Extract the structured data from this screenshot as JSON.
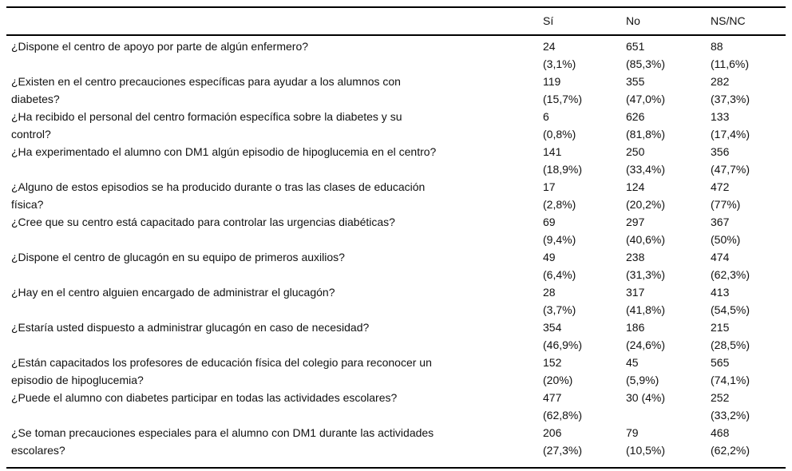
{
  "table": {
    "columns": [
      "Sí",
      "No",
      "NS/NC"
    ],
    "rows": [
      {
        "question_lines": [
          "¿Dispone el centro de apoyo por parte de algún enfermero?"
        ],
        "si": [
          "24",
          "(3,1%)"
        ],
        "no": [
          "651",
          "(85,3%)"
        ],
        "nsnc": [
          "88",
          "(11,6%)"
        ]
      },
      {
        "question_lines": [
          "¿Existen en el centro precauciones específicas para ayudar a los alumnos con",
          "diabetes?"
        ],
        "si": [
          "119",
          "(15,7%)"
        ],
        "no": [
          "355",
          "(47,0%)"
        ],
        "nsnc": [
          "282",
          "(37,3%)"
        ]
      },
      {
        "question_lines": [
          "¿Ha recibido el personal del centro formación específica sobre la diabetes y su",
          "control?"
        ],
        "si": [
          "6",
          "(0,8%)"
        ],
        "no": [
          "626",
          "(81,8%)"
        ],
        "nsnc": [
          "133",
          "(17,4%)"
        ]
      },
      {
        "question_lines": [
          "¿Ha experimentado el alumno con DM1 algún episodio de hipoglucemia en el centro?"
        ],
        "si": [
          "141",
          "(18,9%)"
        ],
        "no": [
          "250",
          "(33,4%)"
        ],
        "nsnc": [
          "356",
          "(47,7%)"
        ]
      },
      {
        "question_lines": [
          "¿Alguno de estos episodios se ha producido durante o tras las clases de educación",
          "física?"
        ],
        "si": [
          "17",
          "(2,8%)"
        ],
        "no": [
          "124",
          "(20,2%)"
        ],
        "nsnc": [
          "472",
          "(77%)"
        ]
      },
      {
        "question_lines": [
          "¿Cree que su centro está capacitado para controlar las urgencias diabéticas?"
        ],
        "si": [
          "69",
          "(9,4%)"
        ],
        "no": [
          "297",
          "(40,6%)"
        ],
        "nsnc": [
          "367",
          "(50%)"
        ]
      },
      {
        "question_lines": [
          "¿Dispone el centro de glucagón en su equipo de primeros auxilios?"
        ],
        "si": [
          "49",
          "(6,4%)"
        ],
        "no": [
          "238",
          "(31,3%)"
        ],
        "nsnc": [
          "474",
          "(62,3%)"
        ]
      },
      {
        "question_lines": [
          "¿Hay en el centro alguien encargado de administrar el glucagón?"
        ],
        "si": [
          "28",
          "(3,7%)"
        ],
        "no": [
          "317",
          "(41,8%)"
        ],
        "nsnc": [
          "413",
          "(54,5%)"
        ]
      },
      {
        "question_lines": [
          "¿Estaría usted dispuesto a administrar glucagón en caso de necesidad?"
        ],
        "si": [
          "354",
          "(46,9%)"
        ],
        "no": [
          "186",
          "(24,6%)"
        ],
        "nsnc": [
          "215",
          "(28,5%)"
        ]
      },
      {
        "question_lines": [
          "¿Están capacitados los profesores de educación física del colegio para reconocer un",
          "episodio de hipoglucemia?"
        ],
        "si": [
          "152",
          "(20%)"
        ],
        "no": [
          "45",
          "(5,9%)"
        ],
        "nsnc": [
          "565",
          "(74,1%)"
        ]
      },
      {
        "question_lines": [
          "¿Puede el alumno con diabetes participar en todas las actividades escolares?"
        ],
        "si": [
          "477",
          "(62,8%)"
        ],
        "no": [
          "30 (4%)"
        ],
        "nsnc": [
          "252",
          "(33,2%)"
        ]
      },
      {
        "question_lines": [
          "¿Se toman precauciones especiales para el alumno con DM1 durante las actividades",
          "escolares?"
        ],
        "si": [
          "206",
          "(27,3%)"
        ],
        "no": [
          "79",
          "(10,5%)"
        ],
        "nsnc": [
          "468",
          "(62,2%)"
        ]
      }
    ]
  },
  "colors": {
    "text": "#111111",
    "rule": "#000000",
    "background": "#ffffff"
  }
}
